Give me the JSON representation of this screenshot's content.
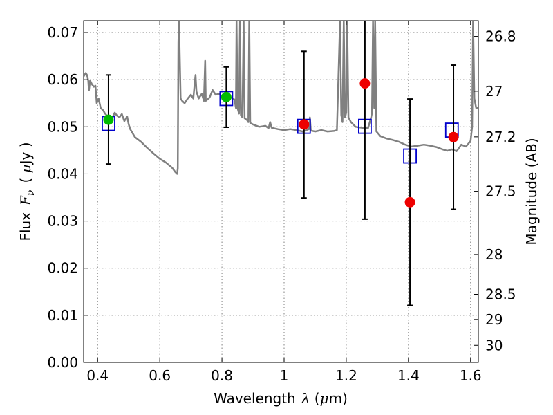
{
  "chart_data": {
    "type": "scatter",
    "xlabel": "Wavelength",
    "xlabel_lambda": "λ",
    "xlabel_unit_open": " (",
    "xlabel_mu": "μ",
    "xlabel_unit_close": "m)",
    "ylabel": "Flux",
    "ylabel_F": "F",
    "ylabel_nu": "ν",
    "ylabel_unit_open": "( ",
    "ylabel_mu": "μ",
    "ylabel_unit_close": "Jy )",
    "y2label": "Magnitude (AB)",
    "xlim": [
      0.355,
      1.625
    ],
    "ylim": [
      0.0,
      0.0725
    ],
    "grid": true,
    "x_ticks": [
      {
        "value": 0.4,
        "label": "0.4"
      },
      {
        "value": 0.6,
        "label": "0.6"
      },
      {
        "value": 0.8,
        "label": "0.8"
      },
      {
        "value": 1.0,
        "label": "1"
      },
      {
        "value": 1.2,
        "label": "1.2"
      },
      {
        "value": 1.4,
        "label": "1.4"
      },
      {
        "value": 1.6,
        "label": "1.6"
      }
    ],
    "y_ticks": [
      {
        "value": 0.0,
        "label": "0.00"
      },
      {
        "value": 0.01,
        "label": "0.01"
      },
      {
        "value": 0.02,
        "label": "0.02"
      },
      {
        "value": 0.03,
        "label": "0.03"
      },
      {
        "value": 0.04,
        "label": "0.04"
      },
      {
        "value": 0.05,
        "label": "0.05"
      },
      {
        "value": 0.06,
        "label": "0.06"
      },
      {
        "value": 0.07,
        "label": "0.07"
      }
    ],
    "mag_ticks": [
      {
        "value": 26.8,
        "label": "26.8"
      },
      {
        "value": 27.0,
        "label": "27"
      },
      {
        "value": 27.2,
        "label": "27.2"
      },
      {
        "value": 27.5,
        "label": "27.5"
      },
      {
        "value": 28.0,
        "label": "28"
      },
      {
        "value": 28.5,
        "label": "28.5"
      },
      {
        "value": 29.0,
        "label": "29"
      },
      {
        "value": 30.0,
        "label": "30"
      }
    ],
    "colors": {
      "template": "#808080",
      "green": "#00bb00",
      "red": "#ee0000",
      "box": "#0000cc",
      "errorbar": "#000000"
    },
    "template_spectrum": [
      [
        0.355,
        0.0607
      ],
      [
        0.362,
        0.0614
      ],
      [
        0.366,
        0.061
      ],
      [
        0.37,
        0.0598
      ],
      [
        0.372,
        0.0577
      ],
      [
        0.376,
        0.0598
      ],
      [
        0.382,
        0.059
      ],
      [
        0.388,
        0.0585
      ],
      [
        0.393,
        0.0587
      ],
      [
        0.397,
        0.055
      ],
      [
        0.403,
        0.056
      ],
      [
        0.41,
        0.054
      ],
      [
        0.418,
        0.0535
      ],
      [
        0.424,
        0.0528
      ],
      [
        0.432,
        0.0522
      ],
      [
        0.44,
        0.0516
      ],
      [
        0.448,
        0.052
      ],
      [
        0.455,
        0.053
      ],
      [
        0.462,
        0.0524
      ],
      [
        0.47,
        0.052
      ],
      [
        0.478,
        0.0527
      ],
      [
        0.486,
        0.0512
      ],
      [
        0.495,
        0.0522
      ],
      [
        0.5,
        0.0505
      ],
      [
        0.505,
        0.0495
      ],
      [
        0.52,
        0.0478
      ],
      [
        0.54,
        0.0468
      ],
      [
        0.56,
        0.0455
      ],
      [
        0.58,
        0.0443
      ],
      [
        0.6,
        0.0432
      ],
      [
        0.62,
        0.0424
      ],
      [
        0.64,
        0.0413
      ],
      [
        0.65,
        0.0404
      ],
      [
        0.656,
        0.04
      ],
      [
        0.658,
        0.0412
      ],
      [
        0.66,
        0.068
      ],
      [
        0.662,
        0.0725
      ],
      [
        0.664,
        0.066
      ],
      [
        0.667,
        0.056
      ],
      [
        0.672,
        0.0555
      ],
      [
        0.68,
        0.055
      ],
      [
        0.69,
        0.056
      ],
      [
        0.7,
        0.0568
      ],
      [
        0.708,
        0.056
      ],
      [
        0.712,
        0.059
      ],
      [
        0.715,
        0.061
      ],
      [
        0.718,
        0.0575
      ],
      [
        0.725,
        0.056
      ],
      [
        0.735,
        0.057
      ],
      [
        0.742,
        0.0555
      ],
      [
        0.746,
        0.064
      ],
      [
        0.748,
        0.0555
      ],
      [
        0.76,
        0.0562
      ],
      [
        0.77,
        0.0578
      ],
      [
        0.78,
        0.0568
      ],
      [
        0.79,
        0.057
      ],
      [
        0.8,
        0.0565
      ],
      [
        0.81,
        0.056
      ],
      [
        0.82,
        0.0558
      ],
      [
        0.83,
        0.0562
      ],
      [
        0.84,
        0.0558
      ],
      [
        0.845,
        0.054
      ],
      [
        0.847,
        0.0725
      ],
      [
        0.85,
        0.054
      ],
      [
        0.855,
        0.0528
      ],
      [
        0.858,
        0.0725
      ],
      [
        0.861,
        0.0525
      ],
      [
        0.866,
        0.052
      ],
      [
        0.87,
        0.0725
      ],
      [
        0.873,
        0.0518
      ],
      [
        0.88,
        0.0515
      ],
      [
        0.885,
        0.051
      ],
      [
        0.888,
        0.0725
      ],
      [
        0.891,
        0.0508
      ],
      [
        0.9,
        0.0505
      ],
      [
        0.92,
        0.05
      ],
      [
        0.94,
        0.0502
      ],
      [
        0.95,
        0.0497
      ],
      [
        0.955,
        0.051
      ],
      [
        0.96,
        0.0498
      ],
      [
        0.98,
        0.0495
      ],
      [
        1.0,
        0.0493
      ],
      [
        1.02,
        0.0495
      ],
      [
        1.04,
        0.0493
      ],
      [
        1.06,
        0.049
      ],
      [
        1.08,
        0.0495
      ],
      [
        1.083,
        0.052
      ],
      [
        1.086,
        0.0492
      ],
      [
        1.1,
        0.049
      ],
      [
        1.12,
        0.0493
      ],
      [
        1.14,
        0.049
      ],
      [
        1.16,
        0.0491
      ],
      [
        1.17,
        0.0493
      ],
      [
        1.18,
        0.0725
      ],
      [
        1.184,
        0.0525
      ],
      [
        1.188,
        0.051
      ],
      [
        1.192,
        0.0725
      ],
      [
        1.196,
        0.052
      ],
      [
        1.2,
        0.053
      ],
      [
        1.203,
        0.0725
      ],
      [
        1.207,
        0.052
      ],
      [
        1.215,
        0.051
      ],
      [
        1.23,
        0.05
      ],
      [
        1.25,
        0.0498
      ],
      [
        1.27,
        0.0497
      ],
      [
        1.28,
        0.052
      ],
      [
        1.283,
        0.053
      ],
      [
        1.286,
        0.0725
      ],
      [
        1.29,
        0.054
      ],
      [
        1.293,
        0.0725
      ],
      [
        1.297,
        0.049
      ],
      [
        1.31,
        0.048
      ],
      [
        1.33,
        0.0475
      ],
      [
        1.35,
        0.0472
      ],
      [
        1.37,
        0.0468
      ],
      [
        1.39,
        0.0462
      ],
      [
        1.41,
        0.0458
      ],
      [
        1.43,
        0.046
      ],
      [
        1.45,
        0.0462
      ],
      [
        1.47,
        0.046
      ],
      [
        1.49,
        0.0457
      ],
      [
        1.51,
        0.0452
      ],
      [
        1.525,
        0.0449
      ],
      [
        1.54,
        0.0452
      ],
      [
        1.555,
        0.0448
      ],
      [
        1.57,
        0.0462
      ],
      [
        1.585,
        0.0458
      ],
      [
        1.6,
        0.047
      ],
      [
        1.605,
        0.05
      ],
      [
        1.608,
        0.0725
      ],
      [
        1.612,
        0.056
      ],
      [
        1.618,
        0.054
      ],
      [
        1.625,
        0.054
      ]
    ],
    "model_photometry": [
      {
        "x": 0.435,
        "y": 0.0507
      },
      {
        "x": 0.814,
        "y": 0.056
      },
      {
        "x": 1.064,
        "y": 0.0501
      },
      {
        "x": 1.26,
        "y": 0.0501
      },
      {
        "x": 1.405,
        "y": 0.0438
      },
      {
        "x": 1.54,
        "y": 0.0493
      }
    ],
    "observed": [
      {
        "x": 0.435,
        "y": 0.0515,
        "err_low": 0.0421,
        "err_high": 0.061,
        "color": "green"
      },
      {
        "x": 0.814,
        "y": 0.0563,
        "err_low": 0.0499,
        "err_high": 0.0627,
        "color": "green"
      },
      {
        "x": 1.064,
        "y": 0.0505,
        "err_low": 0.0349,
        "err_high": 0.066,
        "color": "red"
      },
      {
        "x": 1.26,
        "y": 0.0592,
        "err_low": 0.0304,
        "err_high": 0.074,
        "color": "red"
      },
      {
        "x": 1.405,
        "y": 0.034,
        "err_low": 0.0121,
        "err_high": 0.0559,
        "color": "red"
      },
      {
        "x": 1.545,
        "y": 0.0478,
        "err_low": 0.0325,
        "err_high": 0.0631,
        "color": "red"
      }
    ]
  }
}
